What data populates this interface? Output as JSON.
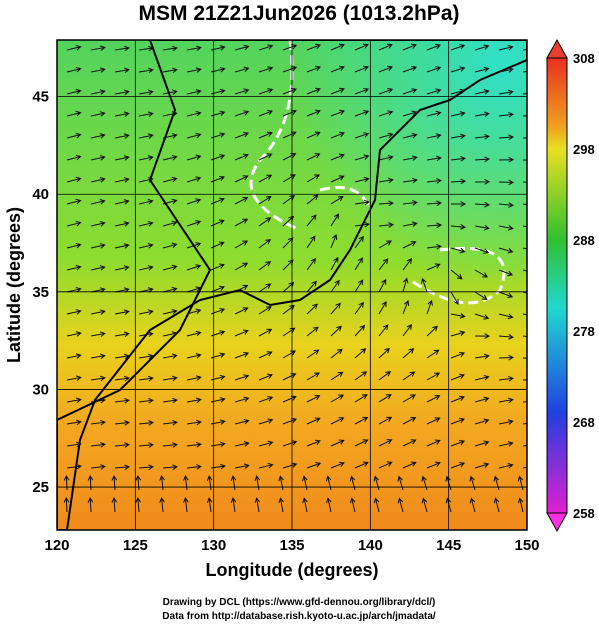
{
  "title": "MSM 21Z21Jun2026 (1013.2hPa)",
  "map": {
    "xlabel": "Longitude (degrees)",
    "ylabel": "Latitude  (degrees)",
    "xlim": [
      120,
      150
    ],
    "ylim": [
      22.8,
      47.9
    ],
    "xticks": [
      120,
      125,
      130,
      135,
      140,
      145,
      150
    ],
    "yticks": [
      25,
      30,
      35,
      40,
      45
    ]
  },
  "colorbar": {
    "lim": [
      258,
      308
    ],
    "ticks": [
      258,
      268,
      278,
      288,
      298,
      308
    ]
  },
  "credits": [
    "Drawing by DCL (https://www.gfd-dennou.org/library/dcl/)",
    "Data from http://database.rish.kyoto-u.ac.jp/arch/jmadata/"
  ]
}
